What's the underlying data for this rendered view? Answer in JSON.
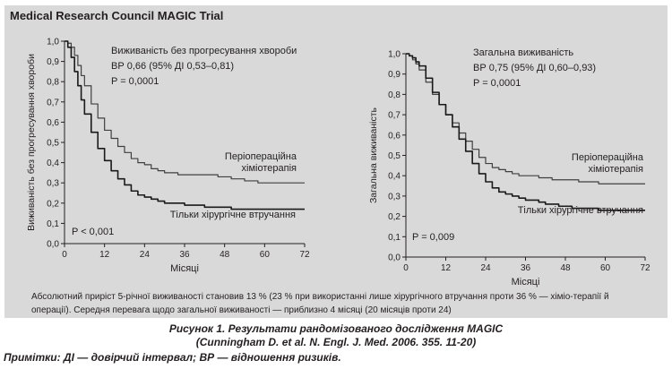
{
  "panel": {
    "title": "Medical Research Council MAGIC Trial",
    "footnote": "Абсолютний приріст 5-річної виживаності становив 13 % (23 % при використанні лише хірургічного втручання проти 36 % — хіміо-терапії й операції). Середня перевага щодо загальної виживаності — приблизно 4 місяці (20 місяців проти 24)"
  },
  "caption": {
    "line1": "Рисунок 1. Результати рандомізованого дослідження MAGIC",
    "line2": "(Cunningham D. et al. N. Engl. J. Med. 2006. 355. 11-20)",
    "line3": "Примітки: ДІ — довірчий інтервал; ВР — відношення ризиків."
  },
  "chart_data": [
    {
      "type": "line",
      "xlabel": "Місяці",
      "ylabel": "Виживаність без прогресування хвороби",
      "xlim": [
        0,
        72
      ],
      "ylim": [
        0,
        1.0
      ],
      "xticks": [
        "0",
        "12",
        "24",
        "36",
        "48",
        "60",
        "72"
      ],
      "yticks": [
        "0,0",
        "0,1",
        "0,2",
        "0,3",
        "0,4",
        "0,5",
        "0,6",
        "0,7",
        "0,8",
        "0,9",
        "1,0"
      ],
      "annotation": [
        "Виживаність без прогресування хвороби",
        "ВР 0,66 (95% ДІ 0,53–0,81)",
        "P = 0,0001"
      ],
      "pvalue_label": "P < 0,001",
      "series": [
        {
          "name": "Періопераційна хіміотерапія",
          "x": [
            0,
            1,
            2,
            3,
            4,
            5,
            6,
            8,
            10,
            12,
            14,
            16,
            18,
            20,
            22,
            24,
            26,
            28,
            30,
            32,
            34,
            36,
            38,
            40,
            42,
            44,
            46,
            48,
            50,
            52,
            54,
            56,
            58,
            60,
            62,
            64,
            66,
            68,
            72
          ],
          "y": [
            1.0,
            0.99,
            0.97,
            0.93,
            0.88,
            0.83,
            0.78,
            0.69,
            0.62,
            0.56,
            0.52,
            0.48,
            0.45,
            0.42,
            0.4,
            0.39,
            0.37,
            0.36,
            0.35,
            0.35,
            0.34,
            0.34,
            0.34,
            0.34,
            0.34,
            0.34,
            0.33,
            0.33,
            0.32,
            0.32,
            0.31,
            0.31,
            0.3,
            0.3,
            0.3,
            0.3,
            0.3,
            0.3,
            0.3
          ]
        },
        {
          "name": "Тільки хірургічне втручання",
          "x": [
            0,
            1,
            2,
            3,
            4,
            5,
            6,
            8,
            10,
            12,
            14,
            16,
            18,
            20,
            22,
            24,
            26,
            28,
            30,
            32,
            34,
            36,
            38,
            40,
            42,
            44,
            46,
            48,
            50,
            52,
            54,
            56,
            58,
            60,
            62,
            64,
            66,
            68,
            72
          ],
          "y": [
            1.0,
            0.97,
            0.92,
            0.85,
            0.78,
            0.71,
            0.64,
            0.55,
            0.47,
            0.41,
            0.36,
            0.32,
            0.29,
            0.26,
            0.24,
            0.23,
            0.22,
            0.21,
            0.2,
            0.2,
            0.2,
            0.19,
            0.19,
            0.19,
            0.18,
            0.18,
            0.18,
            0.18,
            0.17,
            0.17,
            0.17,
            0.17,
            0.17,
            0.17,
            0.17,
            0.17,
            0.17,
            0.17,
            0.17
          ]
        }
      ]
    },
    {
      "type": "line",
      "xlabel": "Місяці",
      "ylabel": "Загальна виживаність",
      "xlim": [
        0,
        72
      ],
      "ylim": [
        0,
        1.0
      ],
      "xticks": [
        "0",
        "12",
        "24",
        "36",
        "48",
        "60",
        "72"
      ],
      "yticks": [
        "0,0",
        "0,1",
        "0,2",
        "0,3",
        "0,4",
        "0,5",
        "0,6",
        "0,7",
        "0,8",
        "0,9",
        "1,0"
      ],
      "annotation": [
        "Загальна виживаність",
        "ВР 0,75 (95% ДІ 0,60–0,93)",
        "P = 0,0001"
      ],
      "pvalue_label": "P = 0,009",
      "series": [
        {
          "name": "Періопераційна хіміотерапія",
          "x": [
            0,
            1,
            2,
            3,
            4,
            6,
            8,
            10,
            12,
            14,
            16,
            18,
            20,
            22,
            24,
            26,
            28,
            30,
            32,
            34,
            36,
            38,
            40,
            42,
            44,
            46,
            48,
            50,
            52,
            54,
            56,
            58,
            60,
            62,
            64,
            66,
            68,
            72
          ],
          "y": [
            1.0,
            0.99,
            0.97,
            0.95,
            0.92,
            0.86,
            0.8,
            0.75,
            0.7,
            0.66,
            0.61,
            0.57,
            0.53,
            0.49,
            0.46,
            0.44,
            0.43,
            0.42,
            0.41,
            0.4,
            0.4,
            0.4,
            0.39,
            0.39,
            0.38,
            0.38,
            0.38,
            0.38,
            0.37,
            0.37,
            0.37,
            0.36,
            0.36,
            0.36,
            0.36,
            0.36,
            0.36,
            0.36
          ]
        },
        {
          "name": "Тільки хірургічне втручання",
          "x": [
            0,
            1,
            2,
            3,
            4,
            6,
            8,
            10,
            12,
            14,
            16,
            18,
            20,
            22,
            24,
            26,
            28,
            30,
            32,
            34,
            36,
            38,
            40,
            42,
            44,
            46,
            48,
            50,
            52,
            54,
            56,
            58,
            60,
            62,
            64,
            66,
            68,
            72
          ],
          "y": [
            1.0,
            0.99,
            0.98,
            0.96,
            0.94,
            0.88,
            0.81,
            0.75,
            0.7,
            0.64,
            0.58,
            0.52,
            0.46,
            0.41,
            0.37,
            0.34,
            0.32,
            0.31,
            0.3,
            0.29,
            0.28,
            0.28,
            0.27,
            0.26,
            0.26,
            0.25,
            0.25,
            0.24,
            0.24,
            0.24,
            0.24,
            0.23,
            0.23,
            0.23,
            0.23,
            0.23,
            0.23,
            0.23
          ]
        }
      ]
    }
  ]
}
